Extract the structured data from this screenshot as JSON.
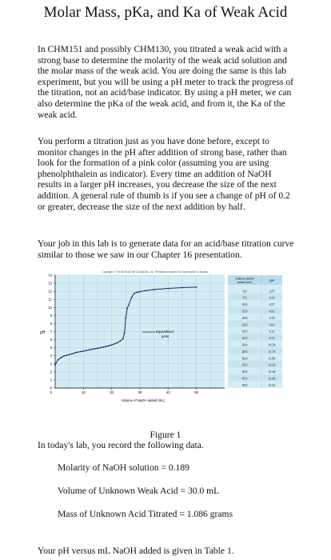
{
  "title": "Molar Mass, pKa, and Ka of Weak Acid",
  "paragraphs": [
    "In CHM151 and possibly CHM130, you titrated a weak acid with a strong base to determine the molarity of the weak acid solution and the molar mass of the weak acid. You are doing the same is this lab experiment, but you will be using a pH meter to track the progress of the titration, not an acid/base indicator. By using a pH meter, we can also determine the pKa of the weak acid, and from it, the Ka of the weak acid.",
    "You perform a titration just as you have done before, except to monitor changes in the pH after addition of strong base, rather than look for the formation of a pink color (assuming you are using phenolphthalein as indicator). Every time an addition of NaOH results in a larger pH increases, you decrease the size of the next addition. A general rule of thumb is if you see a change of pH of 0.2 or greater, decrease the size of the next addition by half.",
    "Your job in this lab is to generate data for an acid/base titration curve similar to those we saw in our Chapter 16 presentation."
  ],
  "figure": {
    "copyright": "Copyright © The McGraw-Hill Companies, Inc. Permission required for reproduction or display.",
    "equivalence_label_line1": "Equivalence",
    "equivalence_label_line2": "point",
    "table_header_volume_line1": "Volume NaOH",
    "table_header_volume_line2": "added (mL)",
    "table_header_ph": "pH",
    "table_rows": [
      [
        "0.0",
        "2.87"
      ],
      [
        "5.0",
        "4.14"
      ],
      [
        "10.0",
        "4.57"
      ],
      [
        "15.0",
        "4.92"
      ],
      [
        "20.0",
        "5.35"
      ],
      [
        "22.0",
        "5.61"
      ],
      [
        "24.0",
        "6.12"
      ],
      [
        "25.0",
        "8.72"
      ],
      [
        "26.0",
        "10.29"
      ],
      [
        "28.0",
        "11.75"
      ],
      [
        "30.0",
        "11.96"
      ],
      [
        "35.0",
        "12.22"
      ],
      [
        "40.0",
        "12.36"
      ],
      [
        "45.0",
        "12.46"
      ],
      [
        "50.0",
        "12.52"
      ]
    ]
  },
  "chart_data": {
    "type": "line",
    "title": "",
    "xlabel": "Volume of NaOH added (mL)",
    "ylabel": "pH",
    "xlim": [
      0,
      60
    ],
    "ylim": [
      0,
      14
    ],
    "x_ticks": [
      10,
      20,
      30,
      40,
      50
    ],
    "y_ticks": [
      0,
      1,
      2,
      3,
      4,
      5,
      6,
      7,
      8,
      9,
      10,
      11,
      12,
      13,
      14
    ],
    "grid": true,
    "series": [
      {
        "x": [
          0,
          1,
          2,
          3,
          4,
          5,
          6,
          7,
          8,
          9,
          10,
          11,
          12,
          13,
          14,
          15,
          16,
          17,
          18,
          19,
          20,
          21,
          22,
          23,
          24,
          24.5,
          25,
          25.5,
          26,
          27,
          28,
          29,
          30,
          32,
          35,
          40,
          45,
          50
        ],
        "y": [
          2.87,
          3.5,
          3.75,
          3.95,
          4.05,
          4.14,
          4.25,
          4.35,
          4.45,
          4.52,
          4.57,
          4.65,
          4.73,
          4.8,
          4.87,
          4.92,
          5.0,
          5.08,
          5.16,
          5.25,
          5.35,
          5.48,
          5.61,
          5.82,
          6.12,
          6.8,
          8.72,
          9.9,
          10.29,
          11.2,
          11.75,
          11.87,
          11.96,
          12.08,
          12.22,
          12.36,
          12.46,
          12.52
        ]
      }
    ],
    "annotations": [
      "Equivalence point"
    ]
  },
  "caption": "Figure 1",
  "intro": "In today's lab, you record the following data.",
  "given": {
    "molarity": "Molarity of NaOH solution = 0.189",
    "volume": "Volume of Unknown Weak Acid = 30.0 mL",
    "mass": "Mass of Unknown Acid Titrated = 1.086 grams"
  },
  "footer": "Your pH versus mL NaOH added is given in Table 1."
}
